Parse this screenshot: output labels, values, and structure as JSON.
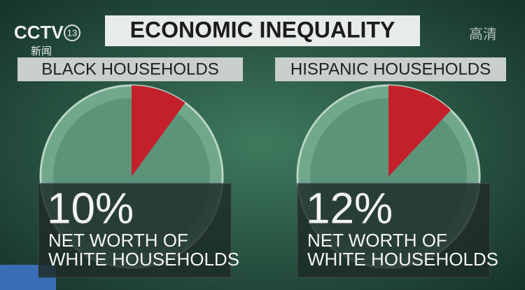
{
  "header": {
    "title": "ECONOMIC INEQUALITY"
  },
  "overlay": {
    "channel": "CCTV",
    "number": "13",
    "name": "新闻",
    "hd": "高清"
  },
  "chart_data": [
    {
      "type": "pie",
      "title": "BLACK HOUSEHOLDS",
      "values": [
        10
      ],
      "value_labels": [
        "10%"
      ],
      "color": "#c4202c",
      "caption": [
        "NET WORTH OF",
        "WHITE HOUSEHOLDS"
      ]
    },
    {
      "type": "pie",
      "title": "HISPANIC HOUSEHOLDS",
      "values": [
        12
      ],
      "value_labels": [
        "12%"
      ],
      "color": "#c4202c",
      "caption": [
        "NET WORTH OF",
        "WHITE HOUSEHOLDS"
      ]
    }
  ]
}
